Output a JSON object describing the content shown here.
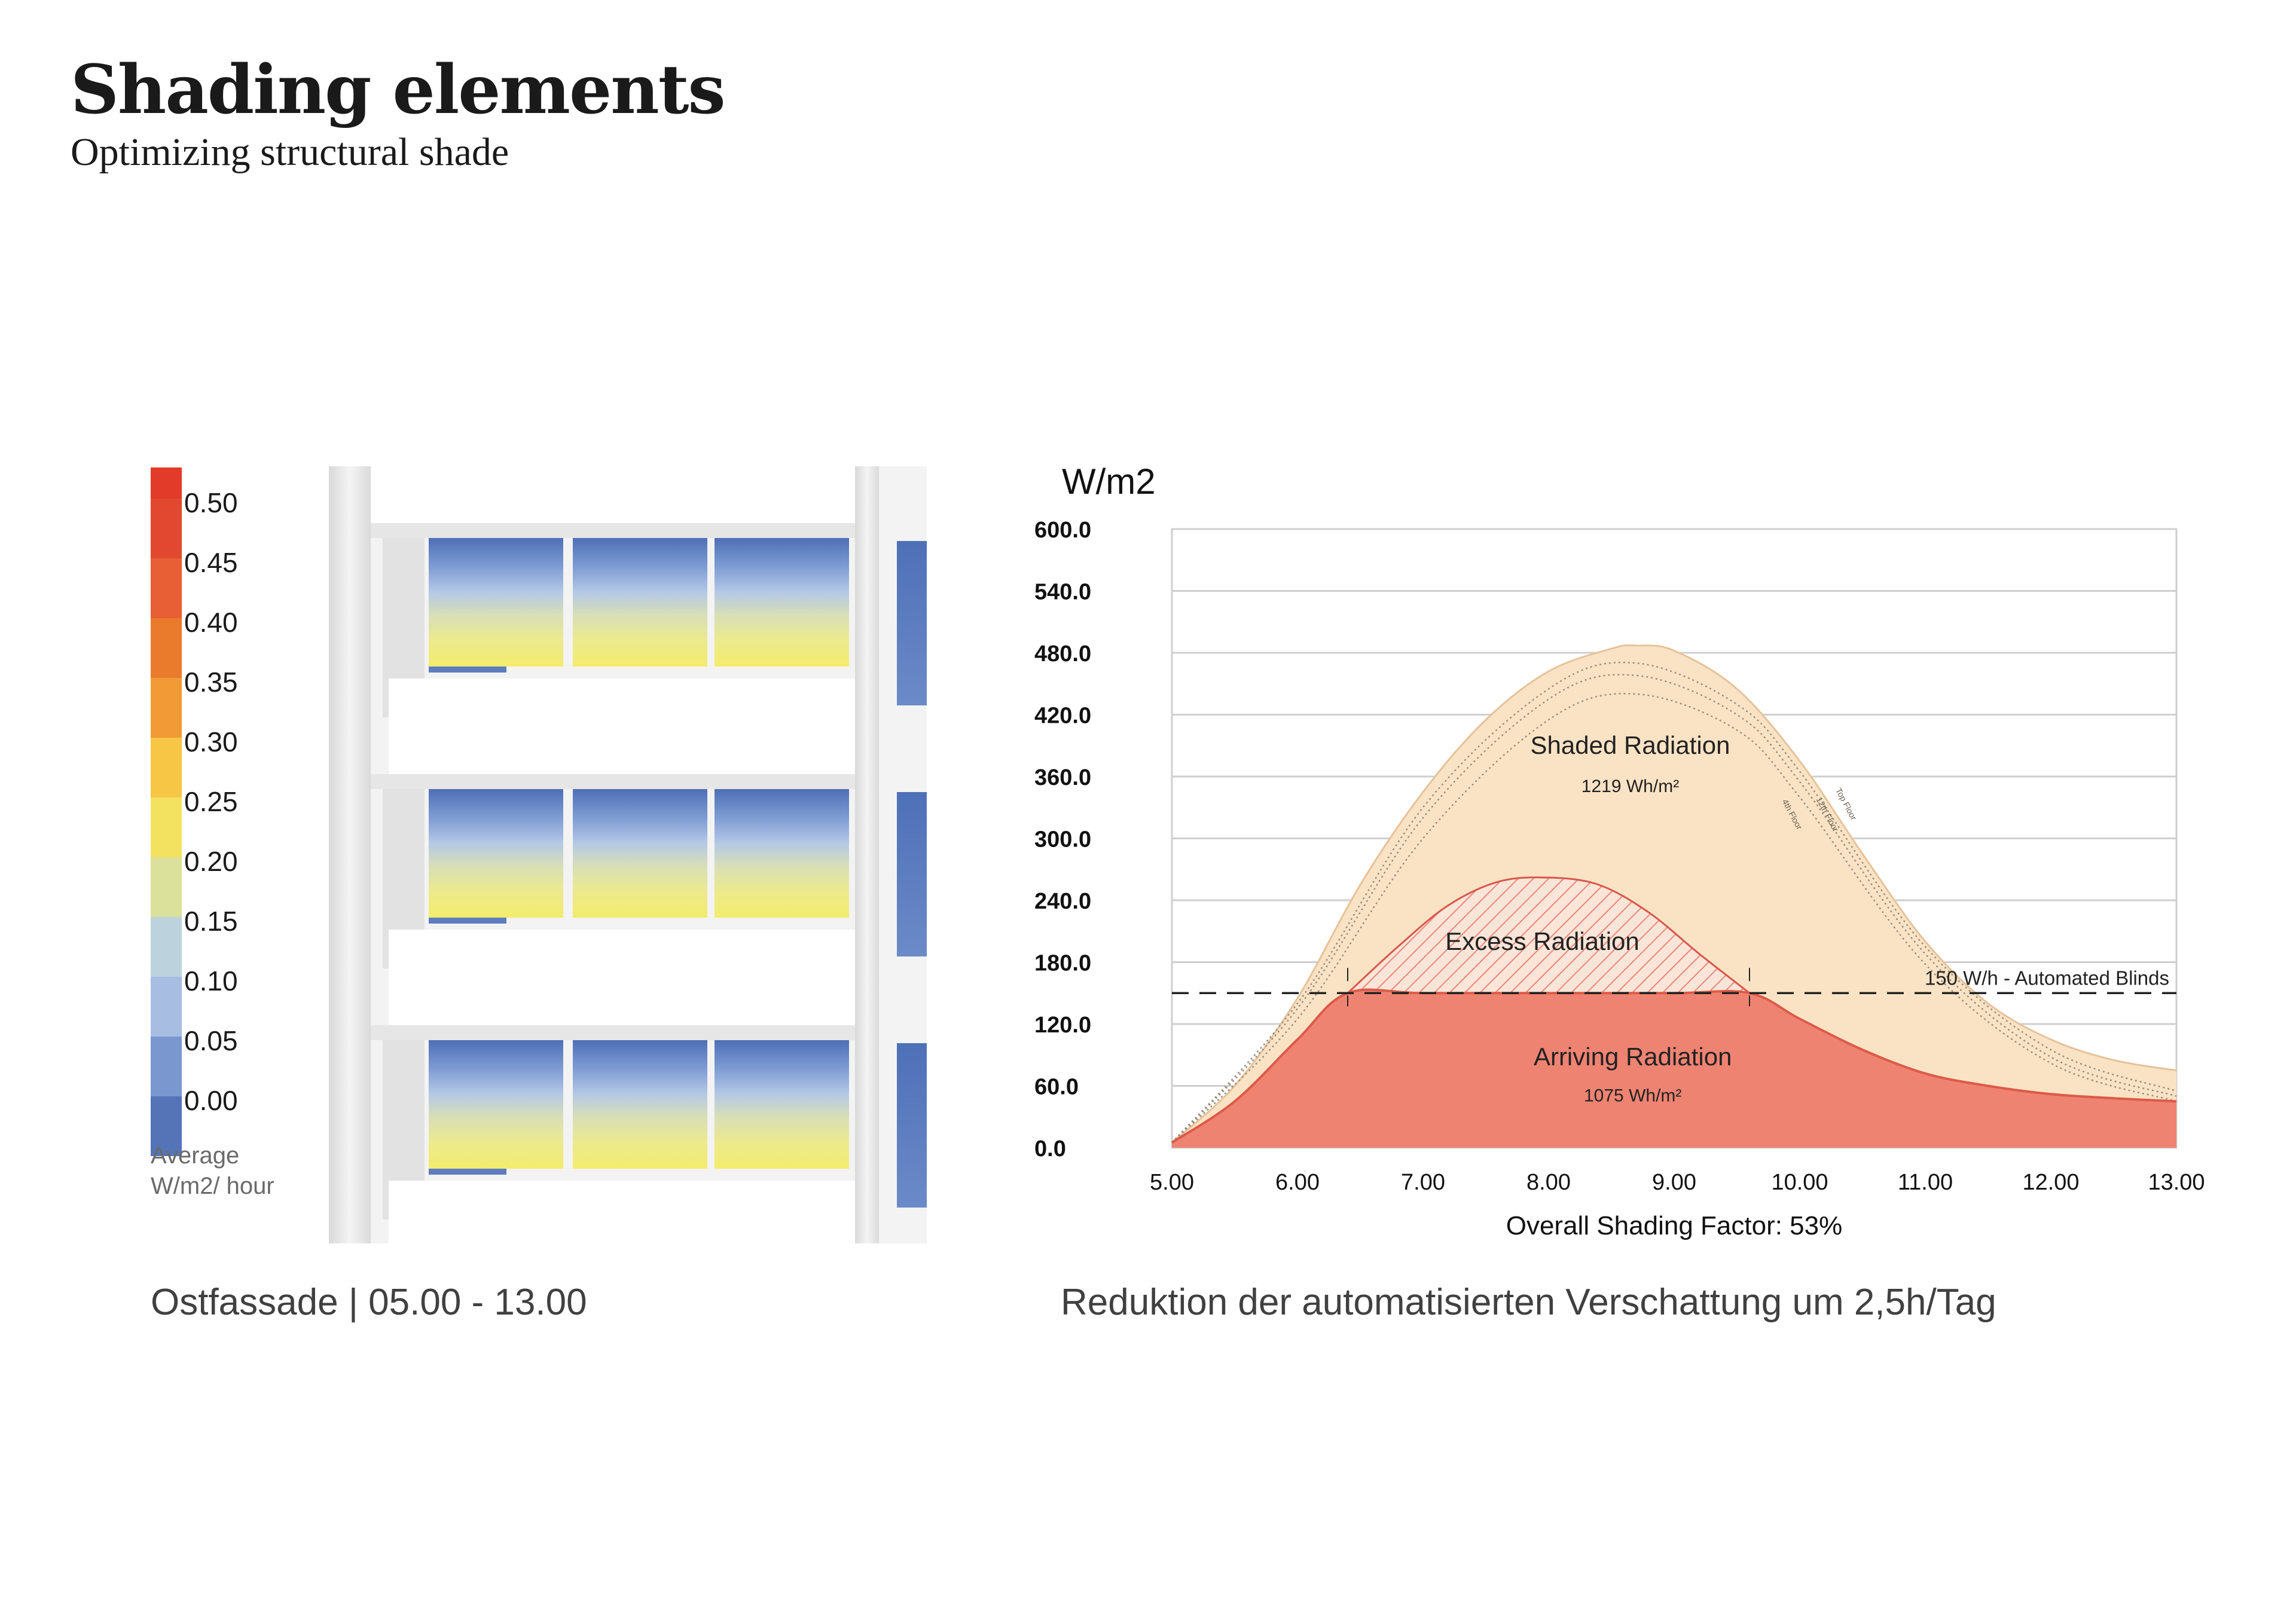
{
  "header": {
    "title": "Shading elements",
    "subtitle": "Optimizing structural shade"
  },
  "scale": {
    "items": [
      {
        "label": "0.50",
        "color": "#e2482f"
      },
      {
        "label": "0.45",
        "color": "#e85e35"
      },
      {
        "label": "0.40",
        "color": "#ea7a2c"
      },
      {
        "label": "0.35",
        "color": "#f29a35"
      },
      {
        "label": "0.30",
        "color": "#f7c645"
      },
      {
        "label": "0.25",
        "color": "#f3e260"
      },
      {
        "label": "0.20",
        "color": "#dbe19a"
      },
      {
        "label": "0.15",
        "color": "#bcd3dd"
      },
      {
        "label": "0.10",
        "color": "#a7bde2"
      },
      {
        "label": "0.05",
        "color": "#7a97cf"
      },
      {
        "label": "0.00",
        "color": "#5574b8"
      }
    ],
    "top_color": "#e23b2a",
    "caption": "Average W/m2/ hour"
  },
  "facade_caption": "Ostfassade | 05.00 - 13.00",
  "chart_caption": "Reduktion der automatisierten Verschattung um 2,5h/Tag",
  "chart_data": {
    "type": "area",
    "ylabel": "W/m2",
    "xlabel": "Overall Shading Factor: 53%",
    "ylim": [
      0,
      600
    ],
    "xlim": [
      5,
      13
    ],
    "y_ticks": [
      "0.0",
      "60.0",
      "120.0",
      "180.0",
      "240.0",
      "300.0",
      "360.0",
      "420.0",
      "480.0",
      "540.0",
      "600.0"
    ],
    "x_ticks": [
      "5.00",
      "6.00",
      "7.00",
      "8.00",
      "9.00",
      "10.00",
      "11.00",
      "12.00",
      "13.00"
    ],
    "grid": true,
    "colors": {
      "shaded": "#fae3c4",
      "shaded_edge": "#e6c29a",
      "arriving": "#ef8372",
      "arriving_edge": "#dc5a48",
      "excess_hatch": "#e7887b"
    },
    "threshold": {
      "value": 150,
      "label": "150 W/h - Automated Blinds"
    },
    "series": [
      {
        "name": "Shaded Radiation",
        "label": "Shaded Radiation",
        "value_label": "1219 Wh/m²",
        "x": [
          5.0,
          5.5,
          6.0,
          6.5,
          7.0,
          7.5,
          8.0,
          8.5,
          8.7,
          9.0,
          9.5,
          10.0,
          10.5,
          11.0,
          11.5,
          12.0,
          12.5,
          13.0
        ],
        "y": [
          5,
          60,
          145,
          255,
          345,
          415,
          462,
          484,
          487,
          482,
          445,
          375,
          285,
          200,
          140,
          105,
          85,
          75
        ]
      },
      {
        "name": "Arriving Radiation",
        "label": "Arriving Radiation",
        "value_label": "1075 Wh/m²",
        "x": [
          5.0,
          5.5,
          6.0,
          6.4,
          7.0,
          8.0,
          9.0,
          9.6,
          10.0,
          10.5,
          11.0,
          11.5,
          12.0,
          12.5,
          13.0
        ],
        "y": [
          5,
          45,
          105,
          150,
          150,
          150,
          150,
          150,
          125,
          95,
          72,
          60,
          52,
          48,
          45
        ]
      },
      {
        "name": "Excess Radiation",
        "label": "Excess Radiation",
        "x": [
          6.4,
          6.8,
          7.2,
          7.6,
          8.0,
          8.4,
          8.8,
          9.2,
          9.6
        ],
        "y": [
          150,
          195,
          235,
          258,
          262,
          255,
          228,
          188,
          150
        ]
      },
      {
        "name": "Top Floor",
        "label": "Top Floor",
        "x": [
          5.0,
          6.0,
          7.0,
          8.0,
          8.7,
          9.5,
          10.0,
          11.0,
          12.0,
          13.0
        ],
        "y": [
          5,
          140,
          330,
          445,
          470,
          430,
          365,
          195,
          95,
          55
        ]
      },
      {
        "name": "12th Floor",
        "label": "12th Floor",
        "x": [
          5.0,
          6.0,
          7.0,
          8.0,
          8.7,
          9.5,
          10.0,
          11.0,
          12.0,
          13.0
        ],
        "y": [
          5,
          135,
          320,
          435,
          458,
          420,
          355,
          188,
          88,
          50
        ]
      },
      {
        "name": "4th Floor",
        "label": "4th Floor",
        "x": [
          5.0,
          6.0,
          7.0,
          8.0,
          8.7,
          9.5,
          10.0,
          11.0,
          12.0,
          13.0
        ],
        "y": [
          5,
          125,
          300,
          415,
          440,
          405,
          340,
          178,
          82,
          45
        ]
      }
    ]
  }
}
